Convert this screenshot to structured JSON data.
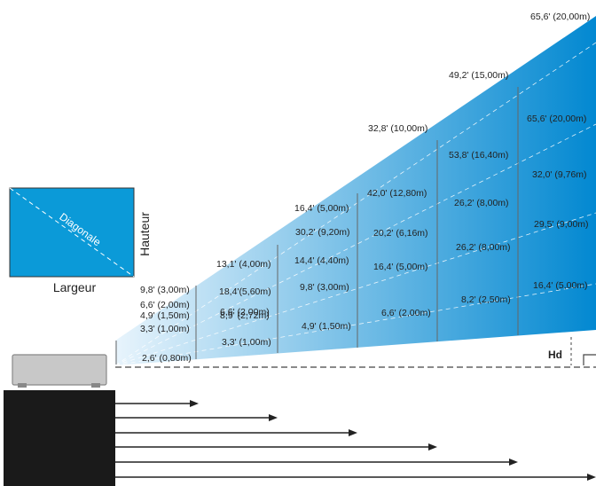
{
  "inset": {
    "diagonal_label": "Diagonale",
    "height_label": "Hauteur",
    "width_label": "Largeur"
  },
  "hd_label": "Hd",
  "colors": {
    "beam_dark": "#0288d1",
    "beam_light": "#e8f4fc",
    "inset_fill": "#0b9ad8",
    "projector_body": "#c8c8c8",
    "stand": "#1a1a1a"
  },
  "columns": [
    {
      "distance": "2,6' (0,80m)",
      "values": [
        "9,8' (3,00m)",
        "6,6' (2,00m)",
        "4,9' (1,50m)",
        "3,3' (1,00m)"
      ]
    },
    {
      "distance": "3,3' (1,00m)",
      "values": [
        "13,1' (4,00m)",
        "18,4'(5,60m)",
        "8,9' (2,72m)",
        "6,6' (2,00m)"
      ]
    },
    {
      "distance": "4,9' (1,50m)",
      "values": [
        "16,4' (5,00m)",
        "30,2' (9,20m)",
        "14,4' (4,40m)",
        "9,8' (3,00m)"
      ]
    },
    {
      "distance": "6,6' (2,00m)",
      "values": [
        "32,8' (10,00m)",
        "42,0' (12,80m)",
        "20,2' (6,16m)",
        "16,4' (5,00m)"
      ]
    },
    {
      "distance": "8,2' (2,50m)",
      "values": [
        "49,2' (15,00m)",
        "53,8' (16,40m)",
        "26,2' (8,00m)",
        "26,2' (8,00m)"
      ]
    },
    {
      "distance": "16,4' (5,00m)",
      "values": [
        "65,6' (20,00m)",
        "65,6' (20,00m)",
        "32,0' (9,76m)",
        "29,5' (9,00m)"
      ]
    }
  ]
}
